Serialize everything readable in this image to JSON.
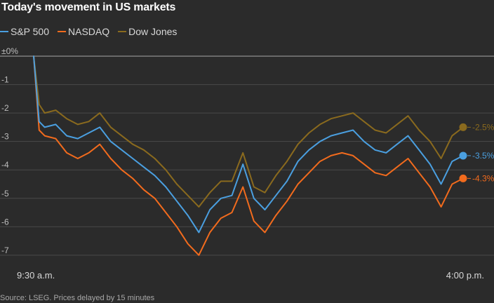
{
  "title": "Today's movement in US markets",
  "source": "Source: LSEG. Prices delayed by 15 minutes",
  "chart_data": {
    "type": "line",
    "title": "Today's movement in US markets",
    "xlabel": "",
    "ylabel": "",
    "x_tick_labels": [
      "9:30 a.m.",
      "4:00 p.m."
    ],
    "y_ticks": [
      0,
      -1,
      -2,
      -3,
      -4,
      -5,
      -6,
      -7
    ],
    "y_tick_labels": [
      "±0%",
      "-1",
      "-2",
      "-3",
      "-4",
      "-5",
      "-6",
      "-7"
    ],
    "ylim": [
      -7.3,
      0.1
    ],
    "x_start": "9:30 a.m.",
    "x_end": "4:00 p.m.",
    "grid": true,
    "legend": "top-left",
    "series": [
      {
        "name": "S&P 500",
        "color": "#4a9fe0",
        "end_label": "-3.5%",
        "x": [
          "9:30",
          "9:35",
          "9:40",
          "9:50",
          "10:00",
          "10:10",
          "10:20",
          "10:30",
          "10:40",
          "10:50",
          "11:00",
          "11:10",
          "11:20",
          "11:30",
          "11:40",
          "11:50",
          "12:00",
          "12:10",
          "12:20",
          "12:30",
          "12:40",
          "12:50",
          "13:00",
          "13:10",
          "13:20",
          "13:30",
          "13:40",
          "13:50",
          "14:00",
          "14:10",
          "14:20",
          "14:30",
          "14:40",
          "14:50",
          "15:00",
          "15:10",
          "15:20",
          "15:30",
          "15:40",
          "15:50",
          "16:00"
        ],
        "values": [
          0,
          -2.3,
          -2.5,
          -2.4,
          -2.8,
          -2.9,
          -2.7,
          -2.5,
          -3.0,
          -3.3,
          -3.6,
          -3.9,
          -4.2,
          -4.6,
          -5.1,
          -5.6,
          -6.2,
          -5.4,
          -5.0,
          -4.9,
          -3.8,
          -5.0,
          -5.4,
          -4.9,
          -4.4,
          -3.7,
          -3.3,
          -3.0,
          -2.8,
          -2.7,
          -2.6,
          -3.0,
          -3.3,
          -3.4,
          -3.1,
          -2.8,
          -3.3,
          -3.8,
          -4.5,
          -3.7,
          -3.5
        ]
      },
      {
        "name": "NASDAQ",
        "color": "#f26b1d",
        "end_label": "-4.3%",
        "x": [
          "9:30",
          "9:35",
          "9:40",
          "9:50",
          "10:00",
          "10:10",
          "10:20",
          "10:30",
          "10:40",
          "10:50",
          "11:00",
          "11:10",
          "11:20",
          "11:30",
          "11:40",
          "11:50",
          "12:00",
          "12:10",
          "12:20",
          "12:30",
          "12:40",
          "12:50",
          "13:00",
          "13:10",
          "13:20",
          "13:30",
          "13:40",
          "13:50",
          "14:00",
          "14:10",
          "14:20",
          "14:30",
          "14:40",
          "14:50",
          "15:00",
          "15:10",
          "15:20",
          "15:30",
          "15:40",
          "15:50",
          "16:00"
        ],
        "values": [
          0,
          -2.6,
          -2.8,
          -2.9,
          -3.4,
          -3.6,
          -3.4,
          -3.1,
          -3.6,
          -4.0,
          -4.3,
          -4.7,
          -5.0,
          -5.5,
          -6.0,
          -6.6,
          -7.0,
          -6.2,
          -5.7,
          -5.5,
          -4.6,
          -5.8,
          -6.2,
          -5.6,
          -5.1,
          -4.5,
          -4.1,
          -3.7,
          -3.5,
          -3.4,
          -3.5,
          -3.8,
          -4.1,
          -4.2,
          -3.9,
          -3.6,
          -4.1,
          -4.6,
          -5.3,
          -4.5,
          -4.3
        ]
      },
      {
        "name": "Dow Jones",
        "color": "#8a6a1e",
        "end_label": "-2.5%",
        "x": [
          "9:30",
          "9:35",
          "9:40",
          "9:50",
          "10:00",
          "10:10",
          "10:20",
          "10:30",
          "10:40",
          "10:50",
          "11:00",
          "11:10",
          "11:20",
          "11:30",
          "11:40",
          "11:50",
          "12:00",
          "12:10",
          "12:20",
          "12:30",
          "12:40",
          "12:50",
          "13:00",
          "13:10",
          "13:20",
          "13:30",
          "13:40",
          "13:50",
          "14:00",
          "14:10",
          "14:20",
          "14:30",
          "14:40",
          "14:50",
          "15:00",
          "15:10",
          "15:20",
          "15:30",
          "15:40",
          "15:50",
          "16:00"
        ],
        "values": [
          0,
          -1.7,
          -2.0,
          -1.9,
          -2.2,
          -2.4,
          -2.3,
          -2.0,
          -2.5,
          -2.8,
          -3.1,
          -3.3,
          -3.6,
          -4.0,
          -4.5,
          -4.9,
          -5.3,
          -4.8,
          -4.4,
          -4.4,
          -3.4,
          -4.6,
          -4.8,
          -4.2,
          -3.7,
          -3.1,
          -2.7,
          -2.4,
          -2.2,
          -2.1,
          -2.0,
          -2.3,
          -2.6,
          -2.7,
          -2.4,
          -2.1,
          -2.6,
          -3.0,
          -3.6,
          -2.8,
          -2.5
        ]
      }
    ]
  },
  "colors": {
    "background": "#2b2b2b",
    "grid": "#4a4a4a",
    "zero_line": "#9a9a9a",
    "text": "#d8d8d8"
  }
}
